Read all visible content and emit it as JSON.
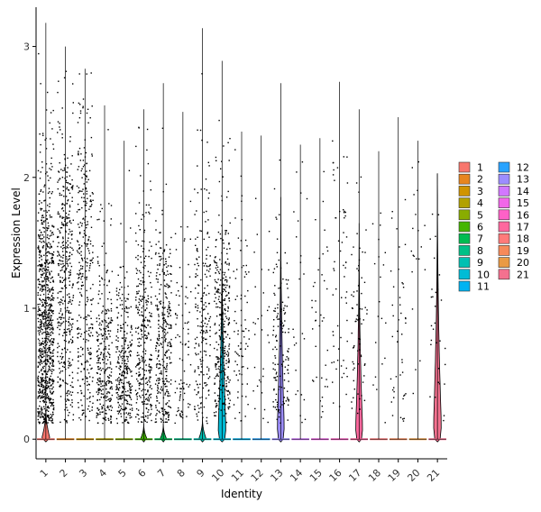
{
  "chart_data": {
    "type": "violin",
    "xlabel": "Identity",
    "ylabel": "Expression Level",
    "ylim": [
      -0.15,
      3.3
    ],
    "yticks": [
      0,
      1,
      2,
      3
    ],
    "grid": false,
    "legend_position": "right",
    "point_color": "#000000",
    "categories": [
      "1",
      "2",
      "3",
      "4",
      "5",
      "6",
      "7",
      "8",
      "9",
      "10",
      "11",
      "12",
      "13",
      "14",
      "15",
      "16",
      "17",
      "18",
      "19",
      "20",
      "21"
    ],
    "colors": [
      "#F8766D",
      "#E7851E",
      "#D09400",
      "#B2A100",
      "#89AC00",
      "#45B500",
      "#00BC51",
      "#00C087",
      "#00C0B2",
      "#00BCD6",
      "#00B3F2",
      "#29A3FF",
      "#9C8DFF",
      "#D277FF",
      "#F166E8",
      "#FF61C7",
      "#FF689E",
      "#FF7A7A",
      "#F68A5A",
      "#E99A44",
      "#F4718F"
    ],
    "series": [
      {
        "name": "1",
        "max": 3.18,
        "violin_height": 0.25,
        "violin_width": 0.45,
        "cell_fraction": 0.92,
        "point_count": 900,
        "mean": 0.85,
        "sd": 0.6
      },
      {
        "name": "2",
        "max": 3.0,
        "violin_height": 0.0,
        "violin_width": 0.0,
        "cell_fraction": 0.5,
        "point_count": 420,
        "mean": 1.2,
        "sd": 0.7
      },
      {
        "name": "3",
        "max": 2.83,
        "violin_height": 0.0,
        "violin_width": 0.0,
        "cell_fraction": 0.45,
        "point_count": 330,
        "mean": 1.3,
        "sd": 0.75
      },
      {
        "name": "4",
        "max": 2.55,
        "violin_height": 0.0,
        "violin_width": 0.0,
        "cell_fraction": 0.45,
        "point_count": 300,
        "mean": 0.6,
        "sd": 0.45
      },
      {
        "name": "5",
        "max": 2.28,
        "violin_height": 0.0,
        "violin_width": 0.0,
        "cell_fraction": 0.45,
        "point_count": 300,
        "mean": 0.55,
        "sd": 0.4
      },
      {
        "name": "6",
        "max": 2.52,
        "violin_height": 0.12,
        "violin_width": 0.35,
        "cell_fraction": 0.5,
        "point_count": 330,
        "mean": 0.8,
        "sd": 0.55
      },
      {
        "name": "7",
        "max": 2.72,
        "violin_height": 0.12,
        "violin_width": 0.35,
        "cell_fraction": 0.5,
        "point_count": 330,
        "mean": 0.75,
        "sd": 0.5
      },
      {
        "name": "8",
        "max": 2.5,
        "violin_height": 0.0,
        "violin_width": 0.0,
        "cell_fraction": 0.3,
        "point_count": 90,
        "mean": 0.7,
        "sd": 0.55
      },
      {
        "name": "9",
        "max": 3.14,
        "violin_height": 0.16,
        "violin_width": 0.4,
        "cell_fraction": 0.45,
        "point_count": 210,
        "mean": 0.9,
        "sd": 0.6
      },
      {
        "name": "10",
        "max": 2.89,
        "violin_height": 1.6,
        "violin_width": 0.45,
        "cell_fraction": 0.55,
        "point_count": 320,
        "mean": 0.9,
        "sd": 0.6
      },
      {
        "name": "11",
        "max": 2.35,
        "violin_height": 0.0,
        "violin_width": 0.0,
        "cell_fraction": 0.4,
        "point_count": 80,
        "mean": 0.8,
        "sd": 0.55
      },
      {
        "name": "12",
        "max": 2.32,
        "violin_height": 0.0,
        "violin_width": 0.0,
        "cell_fraction": 0.2,
        "point_count": 30,
        "mean": 0.9,
        "sd": 0.6
      },
      {
        "name": "13",
        "max": 2.72,
        "violin_height": 1.85,
        "violin_width": 0.4,
        "cell_fraction": 0.4,
        "point_count": 140,
        "mean": 0.7,
        "sd": 0.5
      },
      {
        "name": "14",
        "max": 2.25,
        "violin_height": 0.0,
        "violin_width": 0.0,
        "cell_fraction": 0.2,
        "point_count": 25,
        "mean": 0.9,
        "sd": 0.6
      },
      {
        "name": "15",
        "max": 2.3,
        "violin_height": 0.0,
        "violin_width": 0.0,
        "cell_fraction": 0.25,
        "point_count": 40,
        "mean": 0.8,
        "sd": 0.55
      },
      {
        "name": "16",
        "max": 2.73,
        "violin_height": 0.0,
        "violin_width": 0.0,
        "cell_fraction": 0.3,
        "point_count": 60,
        "mean": 1.2,
        "sd": 0.6
      },
      {
        "name": "17",
        "max": 2.52,
        "violin_height": 1.65,
        "violin_width": 0.4,
        "cell_fraction": 0.35,
        "point_count": 70,
        "mean": 0.9,
        "sd": 0.55
      },
      {
        "name": "18",
        "max": 2.2,
        "violin_height": 0.0,
        "violin_width": 0.0,
        "cell_fraction": 0.2,
        "point_count": 20,
        "mean": 0.9,
        "sd": 0.6
      },
      {
        "name": "19",
        "max": 2.46,
        "violin_height": 0.0,
        "violin_width": 0.0,
        "cell_fraction": 0.25,
        "point_count": 45,
        "mean": 0.7,
        "sd": 0.5
      },
      {
        "name": "20",
        "max": 2.28,
        "violin_height": 0.0,
        "violin_width": 0.0,
        "cell_fraction": 0.2,
        "point_count": 20,
        "mean": 1.4,
        "sd": 0.5
      },
      {
        "name": "21",
        "max": 2.03,
        "violin_height": 2.03,
        "violin_width": 0.45,
        "cell_fraction": 0.25,
        "point_count": 30,
        "mean": 0.8,
        "sd": 0.5
      }
    ]
  }
}
